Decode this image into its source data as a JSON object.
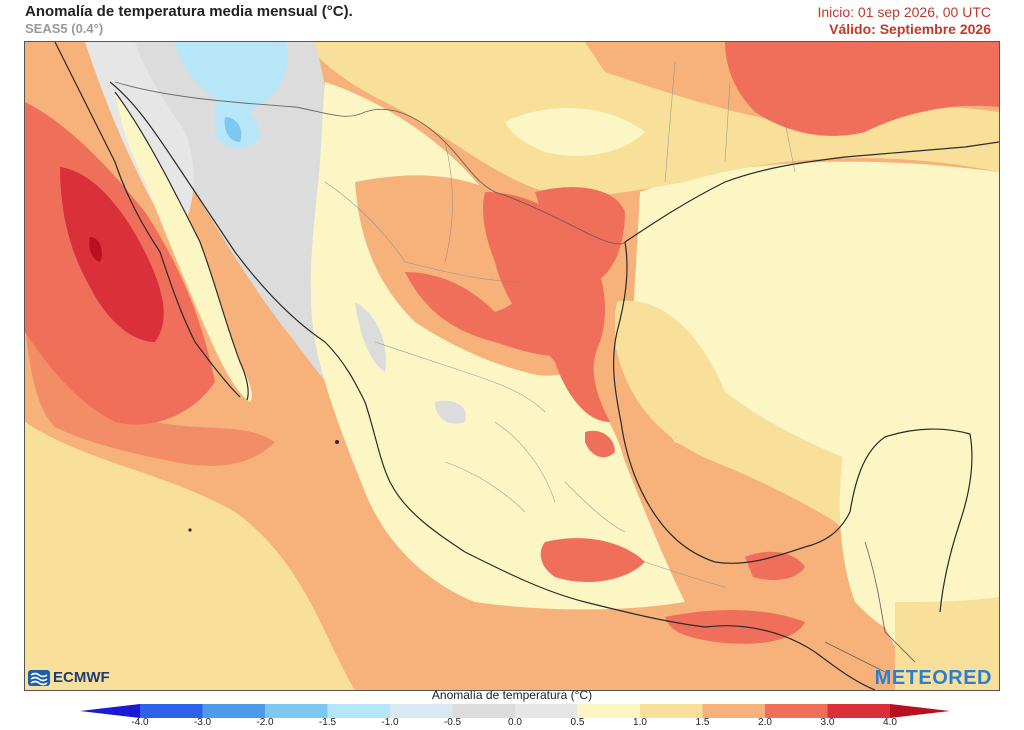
{
  "header": {
    "title": "Anomalía de temperatura media mensual (°C).",
    "model": "SEAS5 (0.4°)",
    "init": "Inicio: 01 sep 2026, 00 UTC",
    "valid": "Válido: Septiembre 2026"
  },
  "logos": {
    "left": "ECMWF",
    "right": "METEORED"
  },
  "legend": {
    "title": "Anomalía de temperatura (°C)",
    "ticks": [
      "-4.0",
      "-3.0",
      "-2.0",
      "-1.5",
      "-1.0",
      "-0.5",
      "0.0",
      "0.5",
      "1.0",
      "1.5",
      "2.0",
      "3.0",
      "4.0"
    ],
    "colors": [
      "#1a1ad6",
      "#2f62e8",
      "#4f9be8",
      "#7cc8f0",
      "#b6e6f7",
      "#d9e9f3",
      "#dcdcdc",
      "#e6e6e6",
      "#fbf6c4",
      "#f9e09a",
      "#f6b27a",
      "#ef6f5a",
      "#d9303a",
      "#b8101f"
    ]
  },
  "map_colors": {
    "ocean_base": "#f6b27a",
    "warm_light": "#f9e09a",
    "pale": "#fbf6c4",
    "hot": "#ef6f5a",
    "very_hot": "#d9303a",
    "extreme": "#b8101f",
    "neutral": "#dcdcdc",
    "cool": "#b6e6f7",
    "border": "#2b2b2b"
  }
}
